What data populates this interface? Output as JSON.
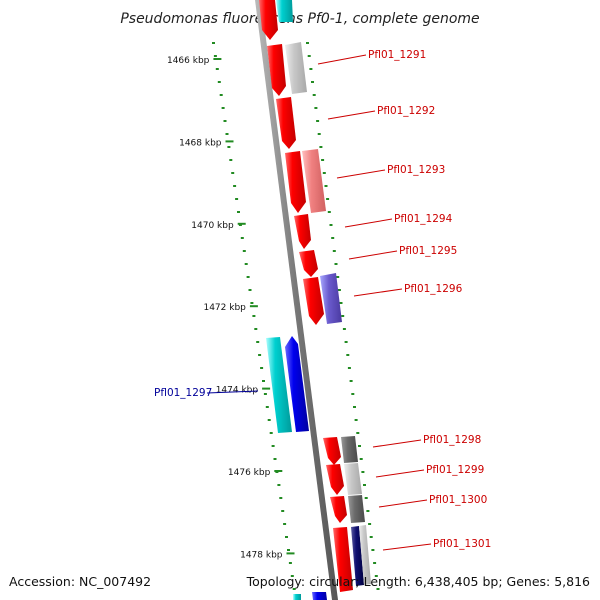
{
  "title": "Pseudomonas fluorescens Pf0-1, complete genome",
  "footer": {
    "accession": "Accession: NC_007492",
    "summary": "Topology: circular; Length: 6,438,405 bp; Genes: 5,816"
  },
  "ticks": [
    {
      "kbp": 1466,
      "label": "1466 kbp"
    },
    {
      "kbp": 1468,
      "label": "1468 kbp"
    },
    {
      "kbp": 1470,
      "label": "1470 kbp"
    },
    {
      "kbp": 1472,
      "label": "1472 kbp"
    },
    {
      "kbp": 1474,
      "label": "1474 kbp"
    },
    {
      "kbp": 1476,
      "label": "1476 kbp"
    },
    {
      "kbp": 1478,
      "label": "1478 kbp"
    }
  ],
  "gene_labels": [
    {
      "text": "Pfl01_1291",
      "color": "#cc0000"
    },
    {
      "text": "Pfl01_1292",
      "color": "#cc0000"
    },
    {
      "text": "Pfl01_1293",
      "color": "#cc0000"
    },
    {
      "text": "Pfl01_1294",
      "color": "#cc0000"
    },
    {
      "text": "Pfl01_1295",
      "color": "#cc0000"
    },
    {
      "text": "Pfl01_1296",
      "color": "#cc0000"
    },
    {
      "text": "Pfl01_1297",
      "color": "#000099"
    },
    {
      "text": "Pfl01_1298",
      "color": "#cc0000"
    },
    {
      "text": "Pfl01_1299",
      "color": "#cc0000"
    },
    {
      "text": "Pfl01_1300",
      "color": "#cc0000"
    },
    {
      "text": "Pfl01_1301",
      "color": "#cc0000"
    }
  ],
  "colors": {
    "forward_gene": "#ff0000",
    "reverse_gene": "#0000ee",
    "reverse_feature": "#00cccc",
    "backbone": "#888888",
    "ruler_dots": "#228B22",
    "label_red": "#cc0000",
    "label_blue": "#000099"
  }
}
